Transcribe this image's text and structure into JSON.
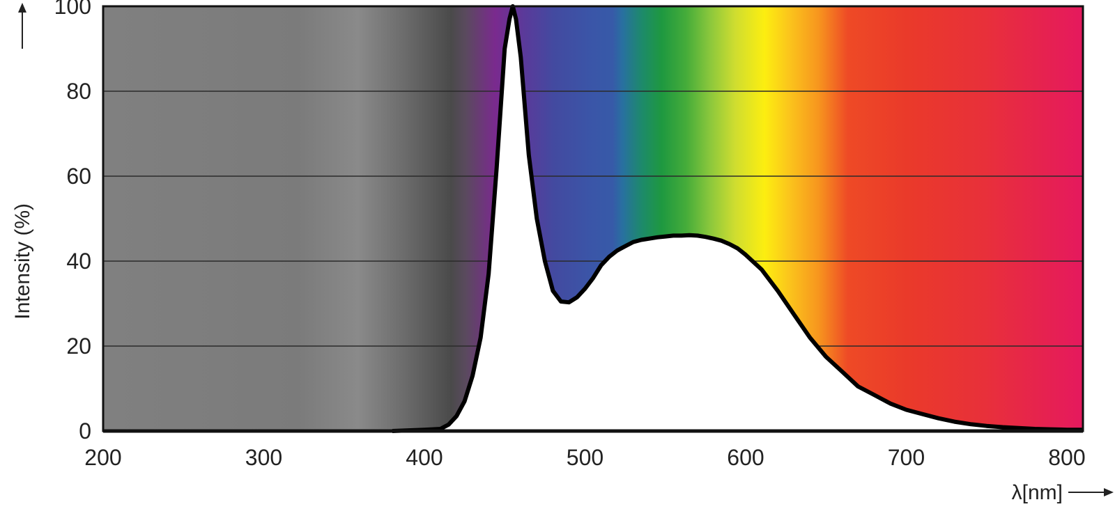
{
  "chart_data": {
    "type": "area",
    "title": "",
    "xlabel": "λ[nm]",
    "ylabel": "Intensity (%)",
    "xlim": [
      200,
      810
    ],
    "ylim": [
      0,
      100
    ],
    "x_ticks": [
      200,
      300,
      400,
      500,
      600,
      700,
      800
    ],
    "y_ticks": [
      0,
      20,
      40,
      60,
      80,
      100
    ],
    "grid": true,
    "legend": "none",
    "background": "visible color spectrum gradient (UV gray to red/magenta)",
    "fill_under_curve": "#ffffff",
    "line_color": "#000000",
    "series": [
      {
        "x": [
          380,
          400,
          410,
          415,
          420,
          425,
          430,
          435,
          440,
          445,
          450,
          453,
          455,
          457,
          460,
          465,
          470,
          475,
          480,
          485,
          490,
          495,
          500,
          505,
          510,
          515,
          520,
          525,
          530,
          535,
          540,
          545,
          550,
          555,
          560,
          565,
          570,
          575,
          580,
          585,
          590,
          595,
          600,
          610,
          620,
          630,
          640,
          650,
          660,
          670,
          680,
          690,
          700,
          710,
          720,
          730,
          740,
          750,
          760,
          770,
          780,
          790,
          800,
          810
        ],
        "y": [
          0,
          0.3,
          0.5,
          1.5,
          3.5,
          7,
          13,
          22,
          37,
          62,
          90,
          97,
          100,
          97,
          88,
          65,
          50,
          40,
          33,
          30.5,
          30.3,
          31.5,
          33.5,
          36,
          39,
          41,
          42.5,
          43.5,
          44.5,
          45,
          45.3,
          45.6,
          45.8,
          46,
          46,
          46.1,
          46,
          45.7,
          45.3,
          44.8,
          44,
          43,
          41.5,
          38,
          33,
          27.5,
          22,
          17.5,
          14,
          10.5,
          8.5,
          6.5,
          5,
          4,
          3,
          2.2,
          1.6,
          1.2,
          0.9,
          0.7,
          0.5,
          0.4,
          0.3,
          0.3
        ]
      }
    ]
  }
}
